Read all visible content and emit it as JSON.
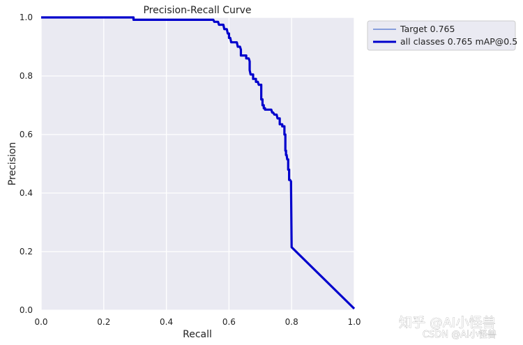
{
  "chart_data": {
    "type": "line",
    "title": "Precision-Recall Curve",
    "xlabel": "Recall",
    "ylabel": "Precision",
    "xlim": [
      0.0,
      1.0
    ],
    "ylim": [
      0.0,
      1.0
    ],
    "xticks": [
      "0.0",
      "0.2",
      "0.4",
      "0.6",
      "0.8",
      "1.0"
    ],
    "yticks": [
      "0.0",
      "0.2",
      "0.4",
      "0.6",
      "0.8",
      "1.0"
    ],
    "grid": true,
    "legend_position": "outside-top-right",
    "series": [
      {
        "name": "Target 0.765",
        "color": "#4a6fd0",
        "style": "thin",
        "x": [
          0.0,
          0.295,
          0.295,
          0.55,
          0.553,
          0.565,
          0.568,
          0.582,
          0.585,
          0.593,
          0.596,
          0.6,
          0.6,
          0.604,
          0.607,
          0.625,
          0.628,
          0.635,
          0.638,
          0.638,
          0.641,
          0.655,
          0.655,
          0.663,
          0.666,
          0.666,
          0.669,
          0.677,
          0.677,
          0.686,
          0.686,
          0.692,
          0.695,
          0.703,
          0.703,
          0.707,
          0.707,
          0.711,
          0.711,
          0.715,
          0.715,
          0.735,
          0.738,
          0.741,
          0.745,
          0.752,
          0.755,
          0.762,
          0.762,
          0.77,
          0.77,
          0.777,
          0.777,
          0.78,
          0.78,
          0.782,
          0.782,
          0.784,
          0.786,
          0.789,
          0.789,
          0.792,
          0.792,
          0.795,
          0.798,
          0.798,
          0.8,
          1.0
        ],
        "y": [
          1.0,
          1.0,
          0.992,
          0.992,
          0.985,
          0.985,
          0.975,
          0.975,
          0.96,
          0.96,
          0.945,
          0.945,
          0.93,
          0.93,
          0.915,
          0.915,
          0.9,
          0.9,
          0.89,
          0.87,
          0.87,
          0.87,
          0.86,
          0.86,
          0.85,
          0.82,
          0.805,
          0.805,
          0.79,
          0.79,
          0.78,
          0.78,
          0.77,
          0.77,
          0.72,
          0.72,
          0.7,
          0.7,
          0.69,
          0.69,
          0.685,
          0.685,
          0.675,
          0.675,
          0.668,
          0.668,
          0.655,
          0.655,
          0.635,
          0.635,
          0.628,
          0.628,
          0.6,
          0.6,
          0.545,
          0.545,
          0.53,
          0.53,
          0.515,
          0.515,
          0.48,
          0.48,
          0.445,
          0.445,
          0.44,
          0.44,
          0.215,
          0.005
        ]
      },
      {
        "name": "all classes 0.765 mAP@0.5",
        "color": "#0000cc",
        "style": "thick",
        "x": [
          0.0,
          0.295,
          0.295,
          0.55,
          0.553,
          0.565,
          0.568,
          0.582,
          0.585,
          0.593,
          0.596,
          0.6,
          0.6,
          0.604,
          0.607,
          0.625,
          0.628,
          0.635,
          0.638,
          0.638,
          0.641,
          0.655,
          0.655,
          0.663,
          0.666,
          0.666,
          0.669,
          0.677,
          0.677,
          0.686,
          0.686,
          0.692,
          0.695,
          0.703,
          0.703,
          0.707,
          0.707,
          0.711,
          0.711,
          0.715,
          0.715,
          0.735,
          0.738,
          0.741,
          0.745,
          0.752,
          0.755,
          0.762,
          0.762,
          0.77,
          0.77,
          0.777,
          0.777,
          0.78,
          0.78,
          0.782,
          0.782,
          0.784,
          0.786,
          0.789,
          0.789,
          0.792,
          0.792,
          0.795,
          0.798,
          0.798,
          0.8,
          1.0
        ],
        "y": [
          1.0,
          1.0,
          0.992,
          0.992,
          0.985,
          0.985,
          0.975,
          0.975,
          0.96,
          0.96,
          0.945,
          0.945,
          0.93,
          0.93,
          0.915,
          0.915,
          0.9,
          0.9,
          0.89,
          0.87,
          0.87,
          0.87,
          0.86,
          0.86,
          0.85,
          0.82,
          0.805,
          0.805,
          0.79,
          0.79,
          0.78,
          0.78,
          0.77,
          0.77,
          0.72,
          0.72,
          0.7,
          0.7,
          0.69,
          0.69,
          0.685,
          0.685,
          0.675,
          0.675,
          0.668,
          0.668,
          0.655,
          0.655,
          0.635,
          0.635,
          0.628,
          0.628,
          0.6,
          0.6,
          0.545,
          0.545,
          0.53,
          0.53,
          0.515,
          0.515,
          0.48,
          0.48,
          0.445,
          0.445,
          0.44,
          0.44,
          0.215,
          0.005
        ]
      }
    ]
  },
  "theme": {
    "plot_background": "#eaeaf2",
    "grid_color": "#ffffff",
    "legend_background": "#eaeaf2",
    "legend_border": "#cccccc"
  },
  "watermark": {
    "main": "知乎 @AI小怪兽",
    "sub": "CSDN @AI小怪兽"
  }
}
